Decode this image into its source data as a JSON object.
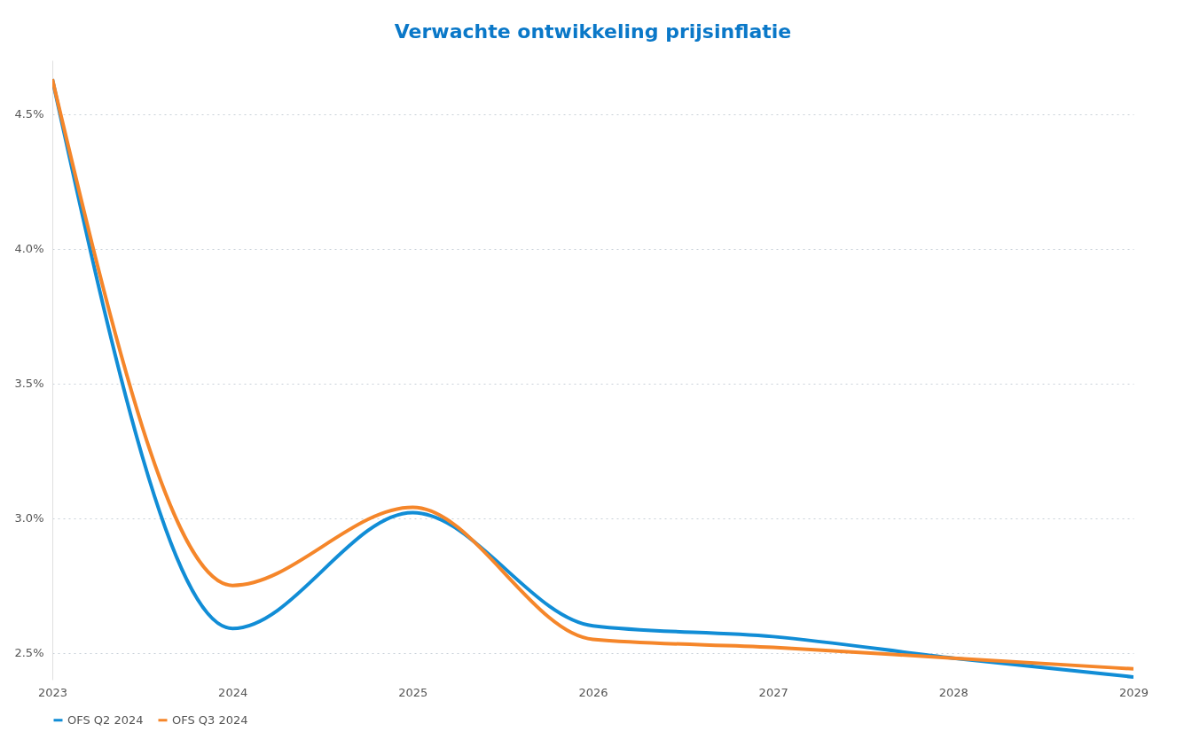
{
  "chart_data": {
    "type": "line",
    "title": "Verwachte ontwikkeling prijsinflatie",
    "categories": [
      "2023",
      "2024",
      "2025",
      "2026",
      "2027",
      "2028",
      "2029"
    ],
    "series": [
      {
        "name": "OFS Q2 2024",
        "color": "#118dd6",
        "values": [
          4.63,
          2.59,
          3.02,
          2.6,
          2.56,
          2.48,
          2.41
        ]
      },
      {
        "name": "OFS Q3 2024",
        "color": "#f5862a",
        "values": [
          4.63,
          2.75,
          3.04,
          2.55,
          2.52,
          2.48,
          2.44
        ]
      }
    ],
    "ylim": [
      2.4,
      4.7
    ],
    "yticks": [
      {
        "value": 2.5,
        "label": "2.5%"
      },
      {
        "value": 3.0,
        "label": "3.0%"
      },
      {
        "value": 3.5,
        "label": "3.5%"
      },
      {
        "value": 4.0,
        "label": "4.0%"
      },
      {
        "value": 4.5,
        "label": "4.5%"
      }
    ],
    "grid": "y",
    "legend": "bottom",
    "marker": "none",
    "line_style": "solid"
  }
}
